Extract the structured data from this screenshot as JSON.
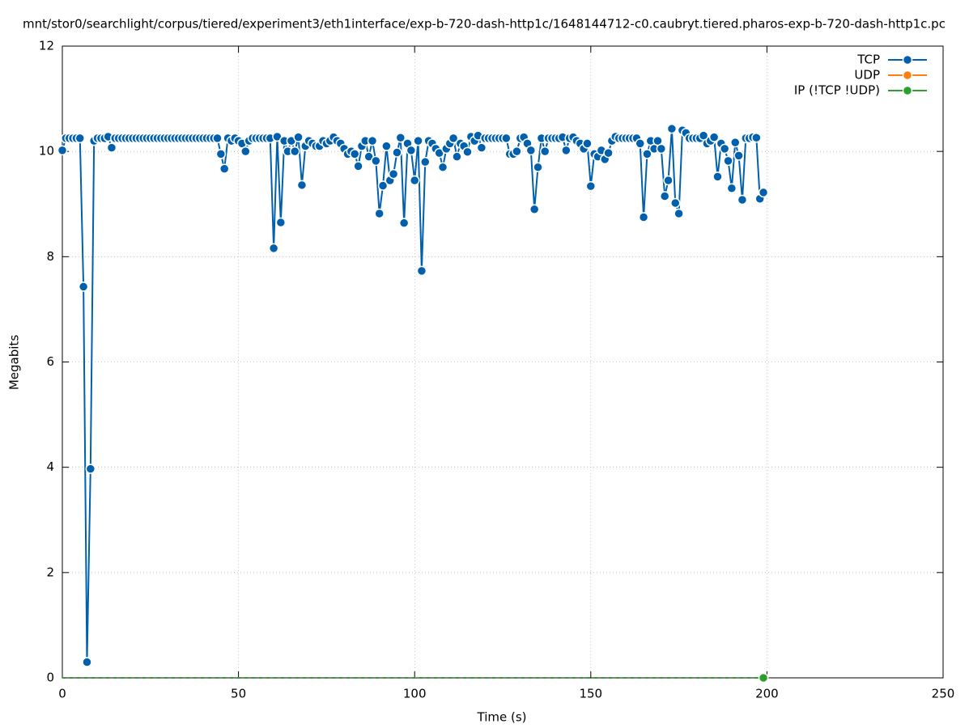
{
  "chart_data": {
    "type": "line",
    "title": "mnt/stor0/searchlight/corpus/tiered/experiment3/eth1interface/exp-b-720-dash-http1c/1648144712-c0.caubryt.tiered.pharos-exp-b-720-dash-http1c.pc",
    "x_label": "Time (s)",
    "y_label": "Megabits",
    "xlim": [
      0,
      250
    ],
    "xticks": [
      0,
      50,
      100,
      150,
      200,
      250
    ],
    "ylim": [
      0,
      12
    ],
    "yticks": [
      0,
      2,
      4,
      6,
      8,
      10,
      12
    ],
    "grid": true,
    "legend": "top-right",
    "x": [
      0,
      1,
      2,
      3,
      4,
      5,
      6,
      7,
      8,
      9,
      10,
      11,
      12,
      13,
      14,
      15,
      16,
      17,
      18,
      19,
      20,
      21,
      22,
      23,
      24,
      25,
      26,
      27,
      28,
      29,
      30,
      31,
      32,
      33,
      34,
      35,
      36,
      37,
      38,
      39,
      40,
      41,
      42,
      43,
      44,
      45,
      46,
      47,
      48,
      49,
      50,
      51,
      52,
      53,
      54,
      55,
      56,
      57,
      58,
      59,
      60,
      61,
      62,
      63,
      64,
      65,
      66,
      67,
      68,
      69,
      70,
      71,
      72,
      73,
      74,
      75,
      76,
      77,
      78,
      79,
      80,
      81,
      82,
      83,
      84,
      85,
      86,
      87,
      88,
      89,
      90,
      91,
      92,
      93,
      94,
      95,
      96,
      97,
      98,
      99,
      100,
      101,
      102,
      103,
      104,
      105,
      106,
      107,
      108,
      109,
      110,
      111,
      112,
      113,
      114,
      115,
      116,
      117,
      118,
      119,
      120,
      121,
      122,
      123,
      124,
      125,
      126,
      127,
      128,
      129,
      130,
      131,
      132,
      133,
      134,
      135,
      136,
      137,
      138,
      139,
      140,
      141,
      142,
      143,
      144,
      145,
      146,
      147,
      148,
      149,
      150,
      151,
      152,
      153,
      154,
      155,
      156,
      157,
      158,
      159,
      160,
      161,
      162,
      163,
      164,
      165,
      166,
      167,
      168,
      169,
      170,
      171,
      172,
      173,
      174,
      175,
      176,
      177,
      178,
      179,
      180,
      181,
      182,
      183,
      184,
      185,
      186,
      187,
      188,
      189,
      190,
      191,
      192,
      193,
      194,
      195,
      196,
      197,
      198,
      199
    ],
    "series": [
      {
        "name": "TCP",
        "color": "#0060ad",
        "values": [
          10.02,
          10.25,
          10.25,
          10.25,
          10.25,
          10.25,
          7.43,
          0.3,
          3.97,
          10.2,
          10.25,
          10.25,
          10.25,
          10.28,
          10.07,
          10.25,
          10.25,
          10.25,
          10.25,
          10.25,
          10.25,
          10.25,
          10.25,
          10.25,
          10.25,
          10.25,
          10.25,
          10.25,
          10.25,
          10.25,
          10.25,
          10.25,
          10.25,
          10.25,
          10.25,
          10.25,
          10.25,
          10.25,
          10.25,
          10.25,
          10.25,
          10.25,
          10.25,
          10.25,
          10.25,
          9.95,
          9.67,
          10.25,
          10.2,
          10.25,
          10.2,
          10.15,
          10.0,
          10.2,
          10.25,
          10.25,
          10.25,
          10.25,
          10.25,
          10.25,
          8.16,
          10.28,
          8.65,
          10.2,
          10.0,
          10.2,
          10.0,
          10.27,
          9.36,
          10.1,
          10.2,
          10.15,
          10.1,
          10.1,
          10.2,
          10.15,
          10.2,
          10.27,
          10.2,
          10.15,
          10.05,
          9.95,
          10.0,
          9.95,
          9.72,
          10.1,
          10.2,
          9.9,
          10.2,
          9.82,
          8.82,
          9.35,
          10.1,
          9.45,
          9.57,
          9.98,
          10.26,
          8.64,
          10.15,
          10.02,
          9.45,
          10.2,
          7.73,
          9.8,
          10.2,
          10.15,
          10.05,
          9.97,
          9.7,
          10.05,
          10.15,
          10.25,
          9.9,
          10.15,
          10.1,
          9.99,
          10.28,
          10.2,
          10.3,
          10.07,
          10.25,
          10.25,
          10.25,
          10.25,
          10.25,
          10.25,
          10.25,
          9.95,
          9.95,
          10.0,
          10.25,
          10.27,
          10.15,
          10.02,
          8.9,
          9.7,
          10.25,
          10.0,
          10.25,
          10.25,
          10.25,
          10.25,
          10.27,
          10.02,
          10.25,
          10.27,
          10.2,
          10.15,
          10.05,
          10.15,
          9.34,
          9.95,
          9.9,
          10.02,
          9.85,
          9.97,
          10.2,
          10.28,
          10.25,
          10.25,
          10.25,
          10.25,
          10.25,
          10.25,
          10.15,
          8.75,
          9.95,
          10.2,
          10.05,
          10.2,
          10.05,
          9.15,
          9.45,
          10.43,
          9.02,
          8.82,
          10.4,
          10.35,
          10.25,
          10.25,
          10.25,
          10.25,
          10.3,
          10.15,
          10.2,
          10.27,
          9.52,
          10.15,
          10.05,
          9.82,
          9.3,
          10.17,
          9.92,
          9.08,
          10.25,
          10.25,
          10.27,
          10.26,
          9.1,
          9.22
        ]
      },
      {
        "name": "UDP",
        "color": "#ff7f0e",
        "values": [
          0,
          0,
          0,
          0,
          0,
          0,
          0,
          0,
          0,
          0,
          0,
          0,
          0,
          0,
          0,
          0,
          0,
          0,
          0,
          0,
          0,
          0,
          0,
          0,
          0,
          0,
          0,
          0,
          0,
          0,
          0,
          0,
          0,
          0,
          0,
          0,
          0,
          0,
          0,
          0,
          0,
          0,
          0,
          0,
          0,
          0,
          0,
          0,
          0,
          0,
          0,
          0,
          0,
          0,
          0,
          0,
          0,
          0,
          0,
          0,
          0,
          0,
          0,
          0,
          0,
          0,
          0,
          0,
          0,
          0,
          0,
          0,
          0,
          0,
          0,
          0,
          0,
          0,
          0,
          0,
          0,
          0,
          0,
          0,
          0,
          0,
          0,
          0,
          0,
          0,
          0,
          0,
          0,
          0,
          0,
          0,
          0,
          0,
          0,
          0,
          0,
          0,
          0,
          0,
          0,
          0,
          0,
          0,
          0,
          0,
          0,
          0,
          0,
          0,
          0,
          0,
          0,
          0,
          0,
          0,
          0,
          0,
          0,
          0,
          0,
          0,
          0,
          0,
          0,
          0,
          0,
          0,
          0,
          0,
          0,
          0,
          0,
          0,
          0,
          0,
          0,
          0,
          0,
          0,
          0,
          0,
          0,
          0,
          0,
          0,
          0,
          0,
          0,
          0,
          0,
          0,
          0,
          0,
          0,
          0,
          0,
          0,
          0,
          0,
          0,
          0,
          0,
          0,
          0,
          0,
          0,
          0,
          0,
          0,
          0,
          0,
          0,
          0,
          0,
          0,
          0,
          0,
          0,
          0,
          0,
          0,
          0,
          0,
          0,
          0,
          0,
          0,
          0,
          0,
          0,
          0,
          0,
          0,
          0,
          0
        ]
      },
      {
        "name": "IP (!TCP  !UDP)",
        "color": "#2ca02c",
        "values": [
          0,
          0,
          0,
          0,
          0,
          0,
          0,
          0,
          0,
          0,
          0,
          0,
          0,
          0,
          0,
          0,
          0,
          0,
          0,
          0,
          0,
          0,
          0,
          0,
          0,
          0,
          0,
          0,
          0,
          0,
          0,
          0,
          0,
          0,
          0,
          0,
          0,
          0,
          0,
          0,
          0,
          0,
          0,
          0,
          0,
          0,
          0,
          0,
          0,
          0,
          0,
          0,
          0,
          0,
          0,
          0,
          0,
          0,
          0,
          0,
          0,
          0,
          0,
          0,
          0,
          0,
          0,
          0,
          0,
          0,
          0,
          0,
          0,
          0,
          0,
          0,
          0,
          0,
          0,
          0,
          0,
          0,
          0,
          0,
          0,
          0,
          0,
          0,
          0,
          0,
          0,
          0,
          0,
          0,
          0,
          0,
          0,
          0,
          0,
          0,
          0,
          0,
          0,
          0,
          0,
          0,
          0,
          0,
          0,
          0,
          0,
          0,
          0,
          0,
          0,
          0,
          0,
          0,
          0,
          0,
          0,
          0,
          0,
          0,
          0,
          0,
          0,
          0,
          0,
          0,
          0,
          0,
          0,
          0,
          0,
          0,
          0,
          0,
          0,
          0,
          0,
          0,
          0,
          0,
          0,
          0,
          0,
          0,
          0,
          0,
          0,
          0,
          0,
          0,
          0,
          0,
          0,
          0,
          0,
          0,
          0,
          0,
          0,
          0,
          0,
          0,
          0,
          0,
          0,
          0,
          0,
          0,
          0,
          0,
          0,
          0,
          0,
          0,
          0,
          0,
          0,
          0,
          0,
          0,
          0,
          0,
          0,
          0,
          0,
          0,
          0,
          0,
          0,
          0,
          0,
          0,
          0,
          0,
          0,
          0
        ]
      }
    ]
  }
}
